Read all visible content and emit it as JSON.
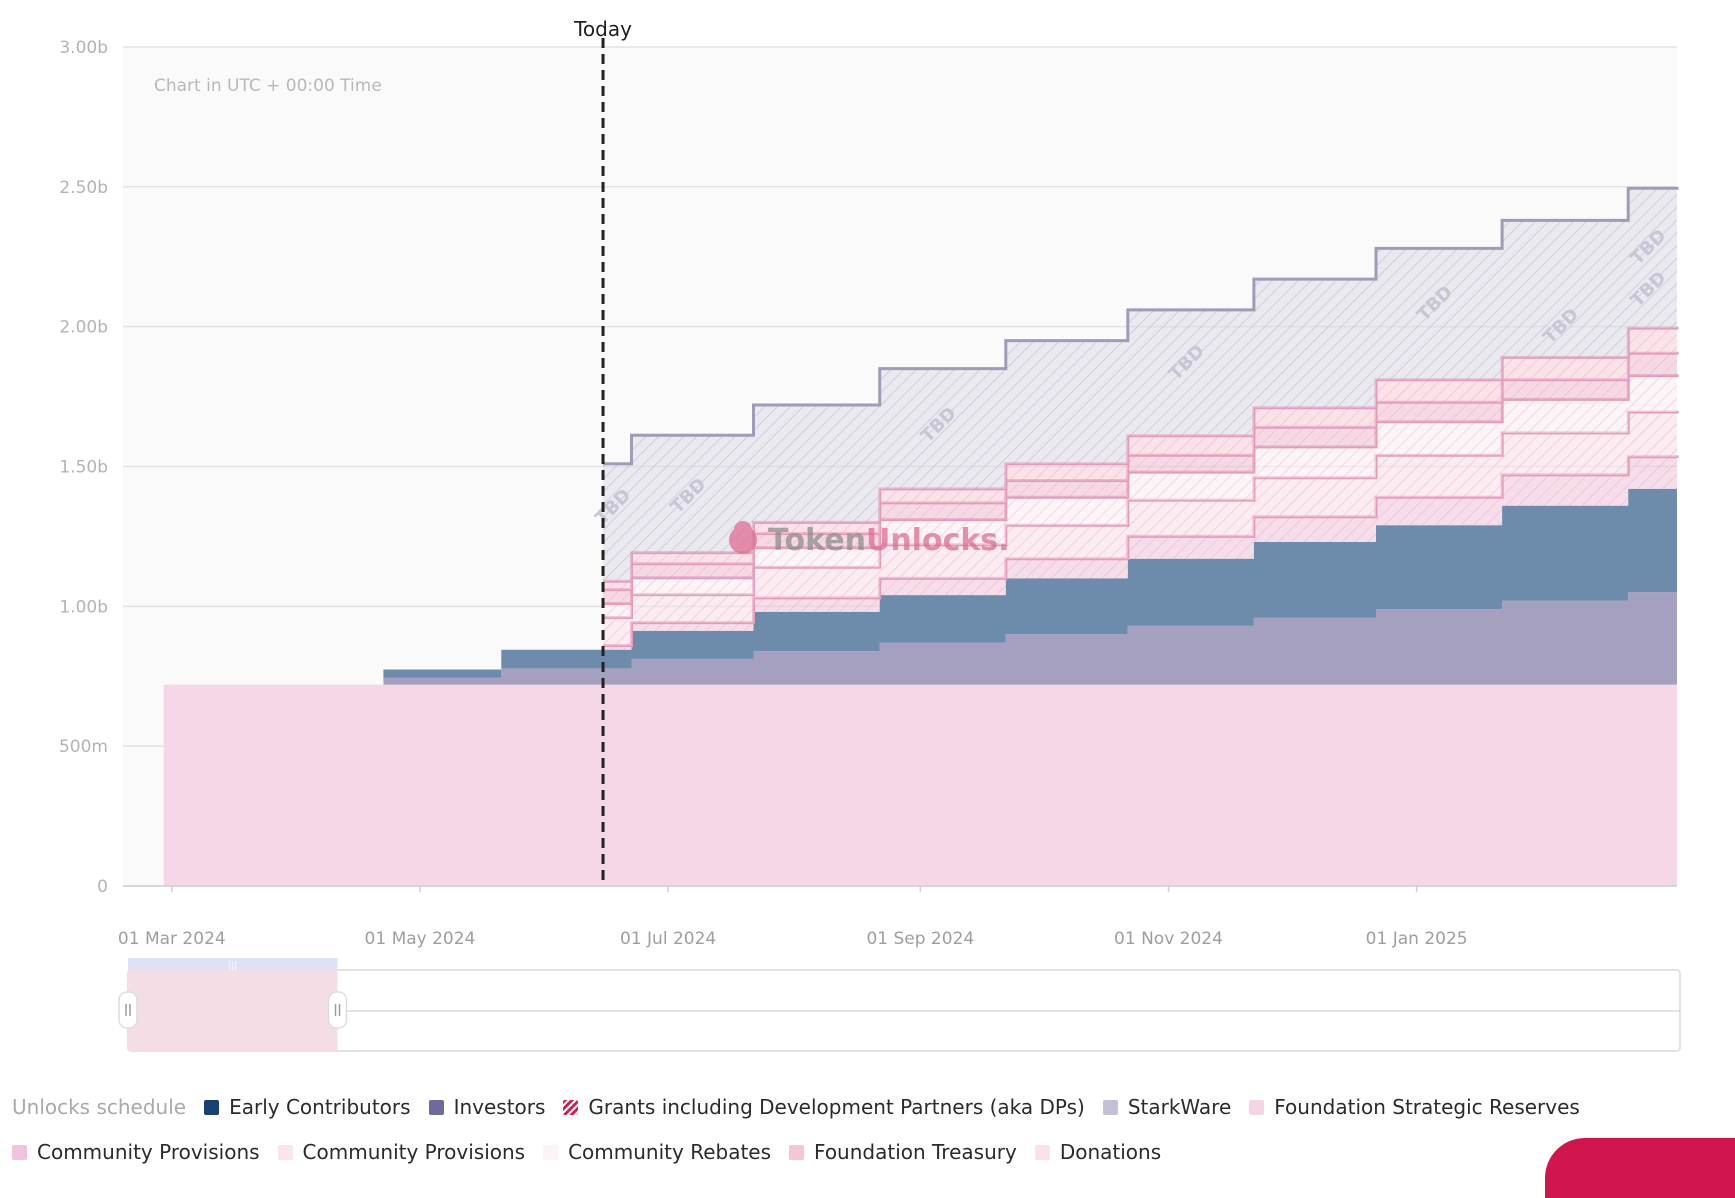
{
  "chart_data": {
    "type": "area",
    "stacked": true,
    "step": true,
    "x_axis": {
      "ticks": [
        "01 Mar 2024",
        "01 May 2024",
        "01 Jul 2024",
        "01 Sep 2024",
        "01 Nov 2024",
        "01 Jan 2025"
      ]
    },
    "y_axis": {
      "ticks": [
        "0",
        "500m",
        "1.00b",
        "1.50b",
        "2.00b",
        "2.50b",
        "3.00b"
      ],
      "ylim": [
        0,
        3000000000
      ]
    },
    "grid": true,
    "today_label": "Today",
    "today_date": "2024-06-15",
    "timezone_note": "Chart in UTC + 00:00 Time",
    "watermark": {
      "part1": "Token",
      "part2": "Unlocks."
    },
    "tbd_label": "TBD",
    "x": [
      "2024-02-28",
      "2024-04-22",
      "2024-05-21",
      "2024-06-15",
      "2024-06-22",
      "2024-07-22",
      "2024-08-22",
      "2024-09-22",
      "2024-10-22",
      "2024-11-22",
      "2024-12-22",
      "2025-01-22",
      "2025-02-22",
      "2025-03-06"
    ],
    "series": [
      {
        "name": "Foundation Strategic Reserves",
        "color": "#f6d7e8",
        "values": [
          0.72,
          0.72,
          0.72,
          0.72,
          0.72,
          0.72,
          0.72,
          0.72,
          0.72,
          0.72,
          0.72,
          0.72,
          0.72,
          0.72
        ]
      },
      {
        "name": "Investors",
        "color": "#a5a0c0",
        "values": [
          0,
          0.024,
          0.058,
          0.058,
          0.092,
          0.12,
          0.15,
          0.18,
          0.21,
          0.24,
          0.27,
          0.3,
          0.33,
          0.33
        ]
      },
      {
        "name": "Early Contributors",
        "color": "#6d8cac",
        "values": [
          0,
          0.03,
          0.067,
          0.067,
          0.1,
          0.14,
          0.17,
          0.2,
          0.24,
          0.27,
          0.3,
          0.34,
          0.37,
          0.37
        ]
      },
      {
        "name": "Community Provisions",
        "color": "#f2c4dd",
        "values": [
          0,
          0,
          0,
          0.015,
          0.03,
          0.05,
          0.06,
          0.07,
          0.08,
          0.09,
          0.1,
          0.11,
          0.115,
          0.12
        ],
        "hatched": true,
        "tbd": true
      },
      {
        "name": "Community Provisions",
        "color": "#f9e0ea",
        "values": [
          0,
          0,
          0,
          0.1,
          0.1,
          0.11,
          0.12,
          0.12,
          0.13,
          0.14,
          0.15,
          0.15,
          0.16,
          0.16
        ],
        "hatched": true,
        "tbd": true
      },
      {
        "name": "Community Rebates",
        "color": "#fbf1f5",
        "values": [
          0,
          0,
          0,
          0.05,
          0.06,
          0.07,
          0.09,
          0.1,
          0.1,
          0.11,
          0.12,
          0.12,
          0.13,
          0.13
        ],
        "hatched": true,
        "tbd": true
      },
      {
        "name": "Foundation Treasury",
        "color": "#f1c0d4",
        "values": [
          0,
          0,
          0,
          0.05,
          0.05,
          0.05,
          0.06,
          0.06,
          0.06,
          0.07,
          0.07,
          0.07,
          0.08,
          0.08
        ],
        "hatched": true,
        "tbd": true
      },
      {
        "name": "Grants including Development Partners (aka DPs)",
        "color": "#f7cdd9",
        "values": [
          0,
          0,
          0,
          0.03,
          0.04,
          0.04,
          0.05,
          0.06,
          0.07,
          0.07,
          0.08,
          0.08,
          0.09,
          0.09
        ],
        "hatched": true,
        "tbd": true
      },
      {
        "name": "StarkWare",
        "color": "#dcdbe6",
        "values": [
          0,
          0,
          0,
          0.42,
          0.42,
          0.42,
          0.43,
          0.44,
          0.45,
          0.46,
          0.47,
          0.49,
          0.5,
          0.5
        ],
        "hatched": true,
        "tbd": true
      }
    ],
    "values_unit": "billions"
  },
  "legend": {
    "title": "Unlocks schedule",
    "row1": [
      {
        "label": "Early Contributors",
        "color": "#1b4072"
      },
      {
        "label": "Investors",
        "color": "#6f6a9e"
      },
      {
        "label": "Grants including Development Partners (aka DPs)",
        "color": "#d81b4e",
        "hatched": true
      },
      {
        "label": "StarkWare",
        "color": "#c2c0d5"
      },
      {
        "label": "Foundation Strategic Reserves",
        "color": "#f5d4e6"
      }
    ],
    "row2": [
      {
        "label": "Community Provisions",
        "color": "#f0c4de"
      },
      {
        "label": "Community Provisions",
        "color": "#fbe4ee"
      },
      {
        "label": "Community Rebates",
        "color": "#fdf3f7"
      },
      {
        "label": "Foundation Treasury",
        "color": "#f4c6d8"
      },
      {
        "label": "Donations",
        "color": "#fbe2ea"
      }
    ]
  },
  "navigator": {
    "selected_range": [
      0,
      0.135
    ]
  }
}
